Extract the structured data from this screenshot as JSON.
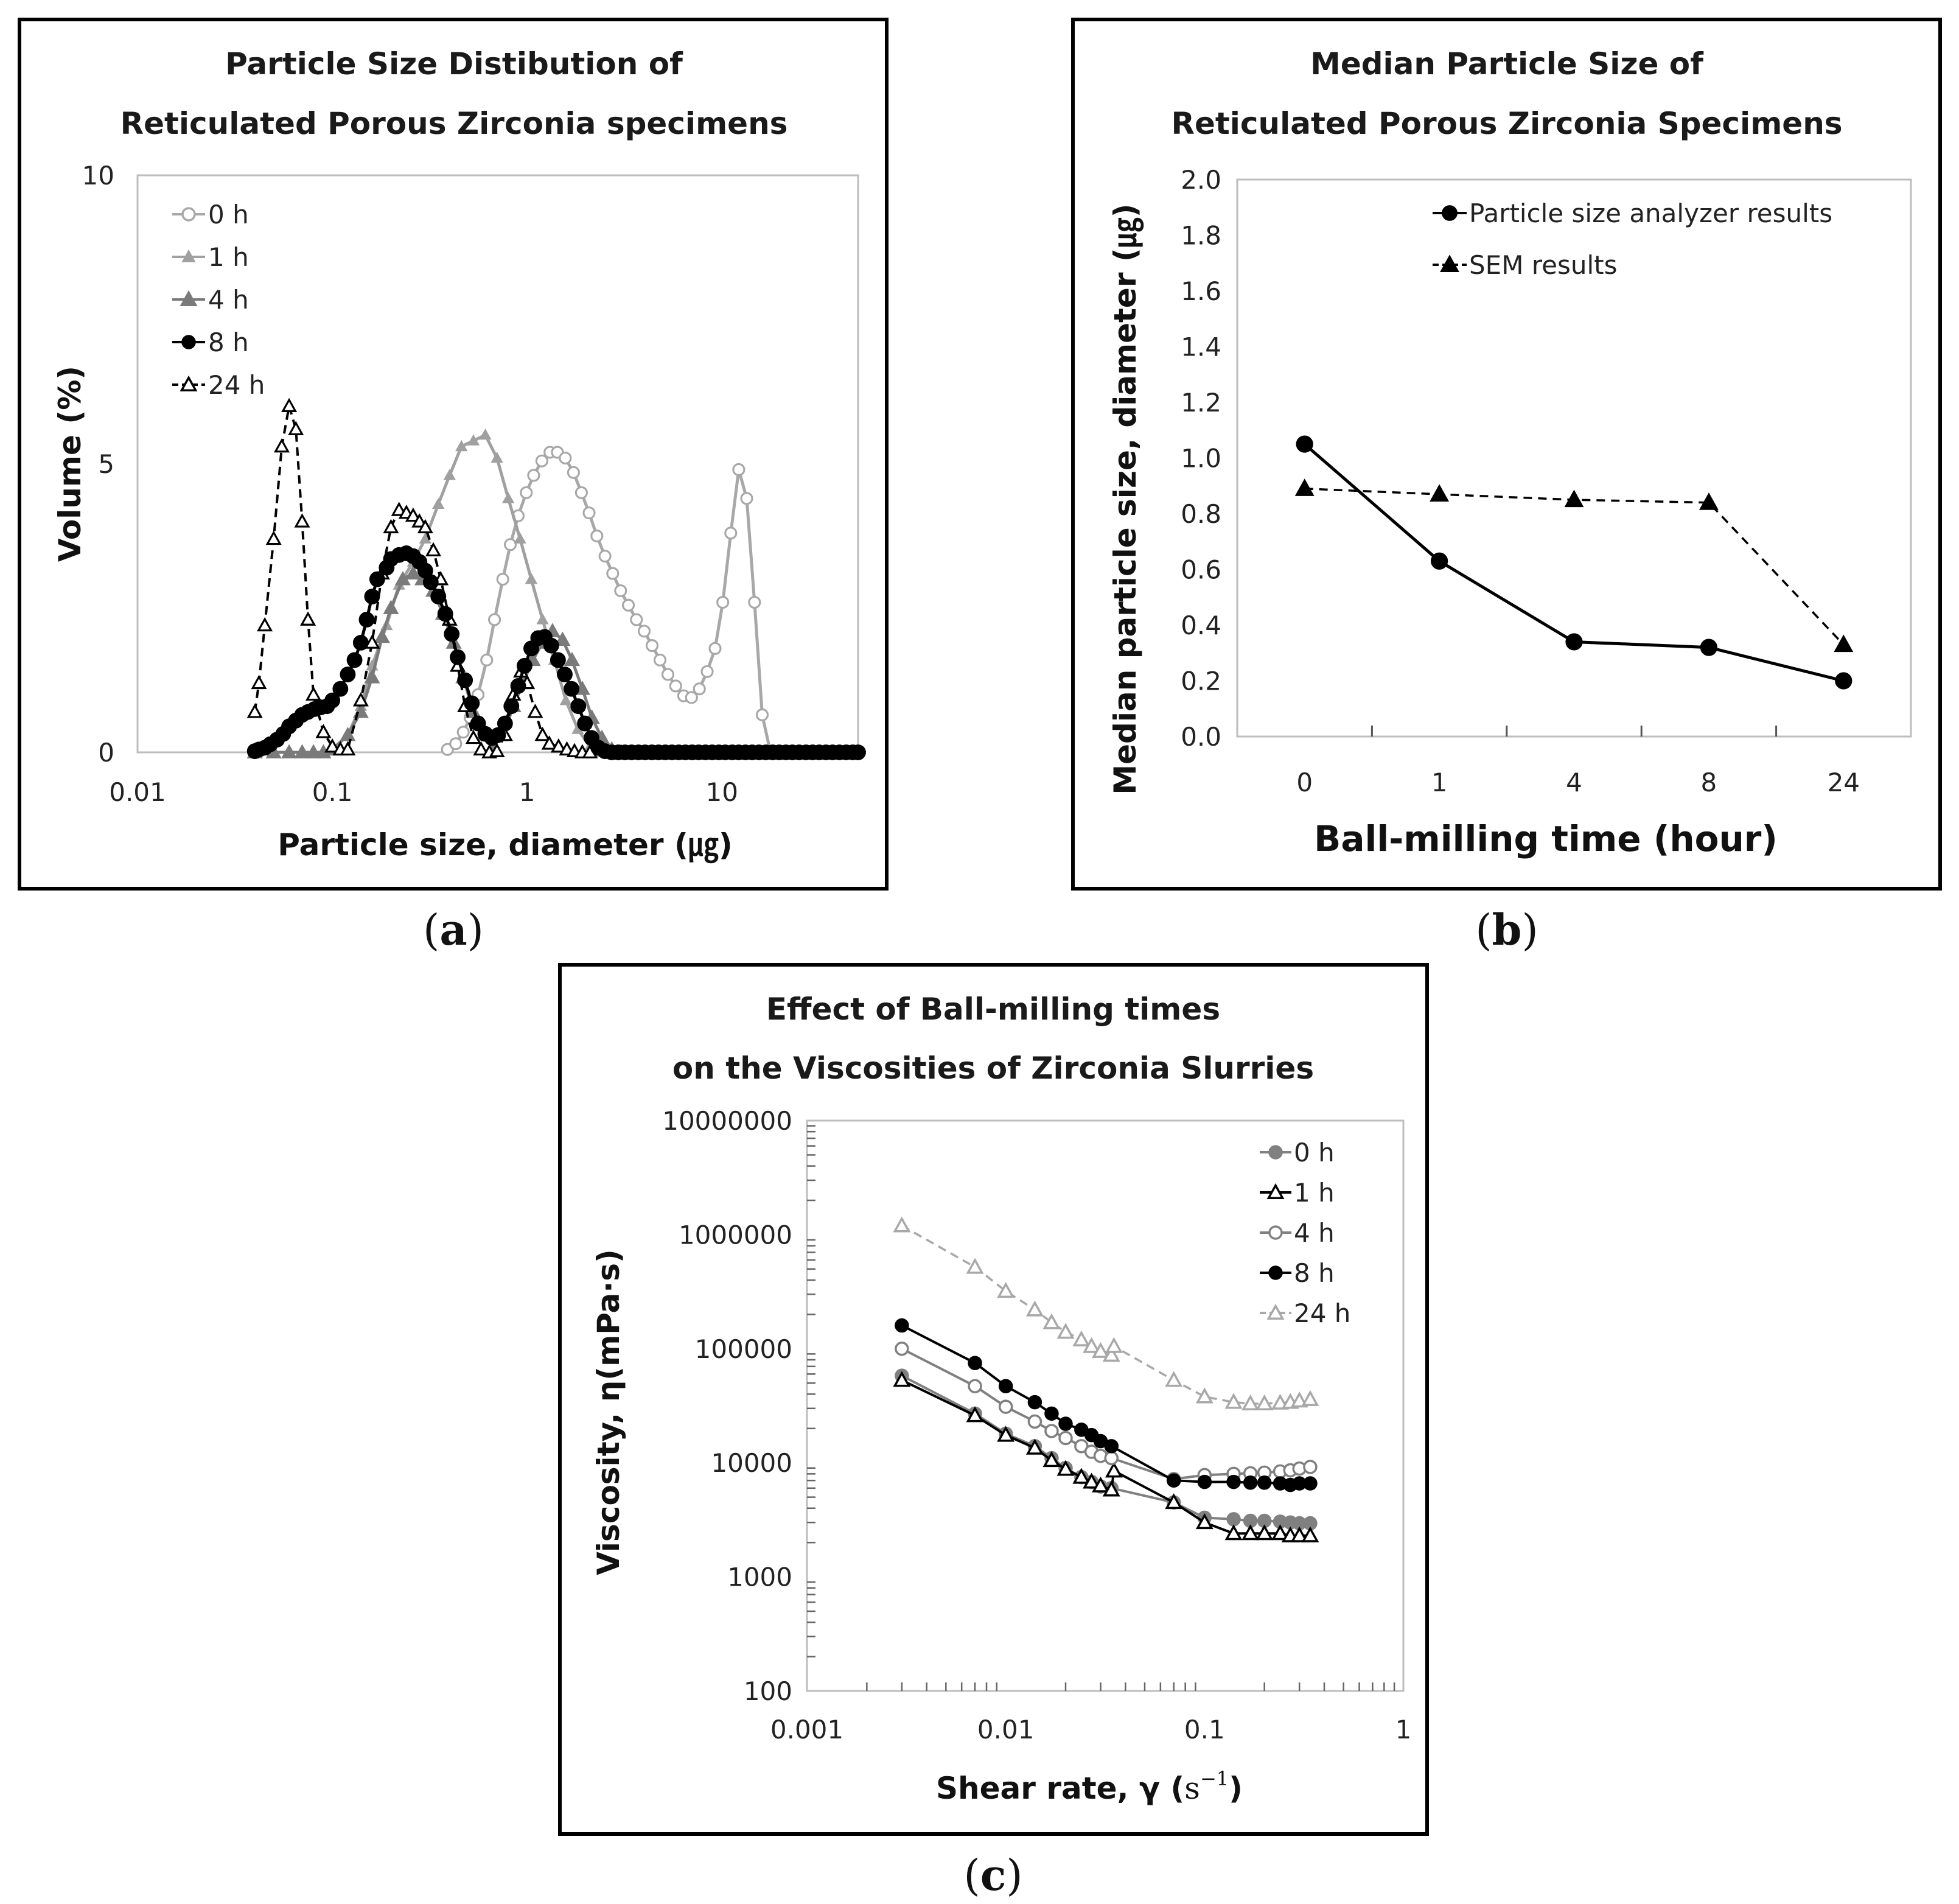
{
  "chart_data": [
    {
      "id": "a",
      "type": "line",
      "caption_letter": "a",
      "caption_open": "(",
      "caption_close": ")",
      "title": [
        "Particle Size Distibution of",
        "Reticulated Porous Zirconia specimens"
      ],
      "xlabel": "Particle size, diameter (㎍)",
      "ylabel": "Volume (%)",
      "x_scale": "log",
      "xlim": [
        0.01,
        50
      ],
      "ylim": [
        0,
        10
      ],
      "x_ticks": [
        {
          "value": 0.01,
          "label": "0.01"
        },
        {
          "value": 0.1,
          "label": "0.1"
        },
        {
          "value": 1,
          "label": "1"
        },
        {
          "value": 10,
          "label": "10"
        }
      ],
      "y_ticks": [
        {
          "value": 0,
          "label": "0"
        },
        {
          "value": 5,
          "label": "5"
        },
        {
          "value": 10,
          "label": "10"
        }
      ],
      "legend_position": "top-left",
      "series": [
        {
          "name": "0 h",
          "legend_label": "0 h",
          "color": "#a8a8a8",
          "marker": "circle-open",
          "dash": "solid",
          "x": [
            0.39,
            0.43,
            0.47,
            0.51,
            0.56,
            0.62,
            0.68,
            0.75,
            0.82,
            0.9,
            0.99,
            1.08,
            1.19,
            1.31,
            1.43,
            1.57,
            1.73,
            1.9,
            2.08,
            2.28,
            2.51,
            2.75,
            3.02,
            3.31,
            3.64,
            3.99,
            4.38,
            4.81,
            5.28,
            5.79,
            6.36,
            6.98,
            7.66,
            8.4,
            9.22,
            10.1,
            11.1,
            12.2,
            13.4,
            14.7,
            16.1,
            17.7,
            19.4,
            21.3,
            23.4,
            25.7,
            28.2,
            30.9,
            33.9,
            37.3,
            40.9,
            44.9,
            49.3
          ],
          "y": [
            0.05,
            0.15,
            0.35,
            0.6,
            1.0,
            1.6,
            2.3,
            3.0,
            3.6,
            4.1,
            4.5,
            4.8,
            5.05,
            5.2,
            5.2,
            5.1,
            4.85,
            4.5,
            4.15,
            3.75,
            3.4,
            3.1,
            2.8,
            2.55,
            2.3,
            2.1,
            1.85,
            1.6,
            1.35,
            1.15,
            0.98,
            0.95,
            1.1,
            1.4,
            1.8,
            2.6,
            3.8,
            4.9,
            4.4,
            2.6,
            0.65,
            0.02,
            0,
            0,
            0,
            0,
            0,
            0,
            0,
            0,
            0,
            0,
            0
          ]
        },
        {
          "name": "1 h",
          "legend_label": "1 h",
          "color": "#a0a0a0",
          "marker": "triangle-filled-small",
          "dash": "solid",
          "x": [
            0.04,
            0.05,
            0.06,
            0.07,
            0.08,
            0.09,
            0.1,
            0.12,
            0.14,
            0.16,
            0.19,
            0.22,
            0.26,
            0.3,
            0.35,
            0.4,
            0.46,
            0.53,
            0.61,
            0.7,
            0.8,
            0.92,
            1.05,
            1.2,
            1.38,
            1.58,
            1.82,
            2.1,
            2.4,
            2.75,
            3.15,
            3.6
          ],
          "y": [
            0,
            0,
            0,
            0,
            0,
            0,
            0.05,
            0.3,
            0.8,
            1.5,
            2.2,
            2.9,
            3.3,
            3.7,
            4.3,
            4.8,
            5.3,
            5.4,
            5.5,
            5.1,
            4.4,
            3.7,
            3.0,
            2.3,
            1.6,
            0.9,
            0.4,
            0.1,
            0,
            0,
            0,
            0
          ]
        },
        {
          "name": "4 h",
          "legend_label": "4 h",
          "color": "#7a7a7a",
          "marker": "triangle-filled",
          "dash": "solid",
          "x": [
            0.04,
            0.05,
            0.06,
            0.07,
            0.08,
            0.09,
            0.1,
            0.12,
            0.14,
            0.16,
            0.18,
            0.2,
            0.23,
            0.26,
            0.29,
            0.33,
            0.37,
            0.42,
            0.47,
            0.53,
            0.6,
            0.67,
            0.75,
            0.85,
            0.95,
            1.07,
            1.2,
            1.35,
            1.52,
            1.7,
            1.92,
            2.15,
            2.42,
            2.72,
            3.05
          ],
          "y": [
            0,
            0,
            0,
            0,
            0,
            0,
            0.05,
            0.3,
            0.7,
            1.3,
            2.0,
            2.5,
            3.0,
            3.1,
            3.0,
            2.8,
            2.4,
            1.9,
            1.3,
            0.7,
            0.3,
            0.1,
            0.3,
            0.8,
            1.2,
            1.6,
            1.9,
            2.1,
            1.95,
            1.6,
            1.1,
            0.6,
            0.25,
            0.05,
            0
          ]
        },
        {
          "name": "8 h",
          "legend_label": "8 h",
          "color": "#000000",
          "marker": "circle-filled",
          "dash": "solid",
          "x": [
            0.04,
            0.042,
            0.045,
            0.048,
            0.052,
            0.056,
            0.06,
            0.065,
            0.07,
            0.075,
            0.081,
            0.087,
            0.094,
            0.1,
            0.11,
            0.12,
            0.13,
            0.14,
            0.15,
            0.16,
            0.17,
            0.19,
            0.2,
            0.22,
            0.24,
            0.26,
            0.28,
            0.3,
            0.32,
            0.35,
            0.38,
            0.41,
            0.44,
            0.48,
            0.52,
            0.56,
            0.61,
            0.66,
            0.71,
            0.77,
            0.83,
            0.9,
            0.97,
            1.05,
            1.14,
            1.23,
            1.33,
            1.44,
            1.56,
            1.69,
            1.83,
            1.98,
            2.14,
            2.32,
            2.51,
            2.72,
            2.94,
            3.18,
            3.44,
            3.73,
            4.03,
            4.37,
            4.73,
            5.12,
            5.54,
            6.0,
            6.49,
            7.03,
            7.6,
            8.23,
            8.91,
            9.64,
            10.4,
            11.3,
            12.2,
            13.2,
            14.3,
            15.5,
            16.8,
            18.2,
            19.7,
            21.3,
            23.0,
            24.9,
            27.0,
            29.2,
            31.6,
            34.2,
            37.0,
            40.1,
            43.4,
            47.0,
            50.0
          ],
          "y": [
            0.02,
            0.05,
            0.08,
            0.14,
            0.22,
            0.32,
            0.45,
            0.55,
            0.65,
            0.7,
            0.75,
            0.78,
            0.8,
            0.9,
            1.1,
            1.35,
            1.6,
            1.9,
            2.3,
            2.7,
            3.0,
            3.2,
            3.35,
            3.42,
            3.45,
            3.4,
            3.3,
            3.15,
            2.95,
            2.7,
            2.4,
            2.05,
            1.65,
            1.25,
            0.85,
            0.5,
            0.32,
            0.25,
            0.3,
            0.5,
            0.8,
            1.15,
            1.5,
            1.8,
            1.98,
            2.0,
            1.85,
            1.6,
            1.35,
            1.1,
            0.8,
            0.5,
            0.25,
            0.08,
            0.02,
            0,
            0,
            0,
            0,
            0,
            0,
            0,
            0,
            0,
            0,
            0,
            0,
            0,
            0,
            0,
            0,
            0,
            0,
            0,
            0,
            0,
            0,
            0,
            0,
            0,
            0,
            0,
            0,
            0,
            0,
            0,
            0,
            0,
            0,
            0,
            0,
            0,
            0
          ]
        },
        {
          "name": "24 h",
          "legend_label": "24 h",
          "color": "#000000",
          "marker": "triangle-open",
          "dash": "dashed",
          "x": [
            0.04,
            0.042,
            0.045,
            0.05,
            0.055,
            0.06,
            0.065,
            0.07,
            0.075,
            0.08,
            0.09,
            0.1,
            0.11,
            0.12,
            0.14,
            0.16,
            0.18,
            0.2,
            0.22,
            0.24,
            0.26,
            0.28,
            0.3,
            0.33,
            0.36,
            0.4,
            0.44,
            0.48,
            0.53,
            0.58,
            0.64,
            0.7,
            0.77,
            0.85,
            0.93,
            1.0,
            1.1,
            1.2,
            1.3,
            1.45,
            1.6,
            1.75,
            1.92,
            2.1
          ],
          "y": [
            0.7,
            1.2,
            2.2,
            3.7,
            5.3,
            6.0,
            5.6,
            4.0,
            2.3,
            1.0,
            0.35,
            0.1,
            0.05,
            0.05,
            0.9,
            1.9,
            3.1,
            3.9,
            4.2,
            4.15,
            4.1,
            4.0,
            3.9,
            3.5,
            3.0,
            2.3,
            1.5,
            0.8,
            0.25,
            0.05,
            0.0,
            0.02,
            0.3,
            1.0,
            1.4,
            1.2,
            0.7,
            0.3,
            0.15,
            0.1,
            0.05,
            0.02,
            0,
            0
          ]
        }
      ]
    },
    {
      "id": "b",
      "type": "line",
      "caption_letter": "b",
      "caption_open": "(",
      "caption_close": ")",
      "title": [
        "Median Particle Size of",
        "Reticulated Porous Zirconia Specimens"
      ],
      "xlabel": "Ball-milling time (hour)",
      "ylabel": "Median particle size, diameter (㎍)",
      "categories": [
        "0",
        "1",
        "4",
        "8",
        "24"
      ],
      "ylim": [
        0,
        2
      ],
      "y_ticks": [
        {
          "value": 0.0,
          "label": "0.0"
        },
        {
          "value": 0.2,
          "label": "0.2"
        },
        {
          "value": 0.4,
          "label": "0.4"
        },
        {
          "value": 0.6,
          "label": "0.6"
        },
        {
          "value": 0.8,
          "label": "0.8"
        },
        {
          "value": 1.0,
          "label": "1.0"
        },
        {
          "value": 1.2,
          "label": "1.2"
        },
        {
          "value": 1.4,
          "label": "1.4"
        },
        {
          "value": 1.6,
          "label": "1.6"
        },
        {
          "value": 1.8,
          "label": "1.8"
        },
        {
          "value": 2.0,
          "label": "2.0"
        }
      ],
      "legend_position": "top-right",
      "series": [
        {
          "name": "Particle size analyzer results",
          "legend_label": "Particle size analyzer results",
          "color": "#000000",
          "marker": "circle-filled",
          "dash": "solid",
          "values": [
            1.05,
            0.63,
            0.34,
            0.32,
            0.2
          ]
        },
        {
          "name": "SEM results",
          "legend_label": "SEM results",
          "color": "#000000",
          "marker": "triangle-filled",
          "dash": "dashed",
          "values": [
            0.89,
            0.87,
            0.85,
            0.84,
            0.33
          ]
        }
      ]
    },
    {
      "id": "c",
      "type": "line",
      "caption_letter": "c",
      "caption_open": "(",
      "caption_close": ")",
      "title": [
        "Effect of Ball-milling times",
        "on the Viscosities of Zirconia Slurries"
      ],
      "xlabel_prefix": "Shear rate, γ (",
      "xlabel_base": "s",
      "xlabel_sup": "−1",
      "xlabel_suffix": ")",
      "ylabel": "Viscosity, η(mPa·s)",
      "x_scale": "log",
      "y_scale": "log",
      "xlim": [
        0.001,
        1
      ],
      "ylim": [
        100,
        10000000
      ],
      "x_ticks": [
        {
          "value": 0.001,
          "label": "0.001"
        },
        {
          "value": 0.01,
          "label": "0.01"
        },
        {
          "value": 0.1,
          "label": "0.1"
        },
        {
          "value": 1,
          "label": "1"
        }
      ],
      "y_ticks": [
        {
          "value": 100,
          "label": "100"
        },
        {
          "value": 1000,
          "label": "1000"
        },
        {
          "value": 10000,
          "label": "10000"
        },
        {
          "value": 100000,
          "label": "100000"
        },
        {
          "value": 1000000,
          "label": "1000000"
        },
        {
          "value": 10000000,
          "label": "10000000"
        }
      ],
      "legend_position": "top-right",
      "series": [
        {
          "name": "0 h",
          "legend_label": "0 h",
          "color": "#808080",
          "marker": "circle-filled",
          "dash": "solid",
          "x": [
            0.003,
            0.007,
            0.01,
            0.014,
            0.017,
            0.02,
            0.024,
            0.027,
            0.03,
            0.034,
            0.07,
            0.1,
            0.14,
            0.17,
            0.2,
            0.24,
            0.27,
            0.3,
            0.34
          ],
          "y": [
            58000,
            27000,
            18000,
            14000,
            11000,
            9000,
            7500,
            6800,
            6200,
            6000,
            4500,
            3300,
            3200,
            3100,
            3100,
            3050,
            3000,
            2950,
            2950
          ]
        },
        {
          "name": "1 h",
          "legend_label": "1 h",
          "color": "#000000",
          "marker": "triangle-open",
          "dash": "solid",
          "x": [
            0.003,
            0.007,
            0.01,
            0.014,
            0.017,
            0.02,
            0.024,
            0.027,
            0.03,
            0.034,
            0.035,
            0.07,
            0.1,
            0.14,
            0.17,
            0.2,
            0.24,
            0.27,
            0.3,
            0.34
          ],
          "y": [
            53000,
            26000,
            17500,
            13500,
            10500,
            8800,
            7500,
            6800,
            6300,
            5800,
            8500,
            4500,
            3000,
            2400,
            2400,
            2400,
            2400,
            2300,
            2300,
            2300
          ]
        },
        {
          "name": "4 h",
          "legend_label": "4 h",
          "color": "#808080",
          "marker": "circle-open",
          "dash": "solid",
          "x": [
            0.003,
            0.007,
            0.01,
            0.014,
            0.017,
            0.02,
            0.024,
            0.027,
            0.03,
            0.034,
            0.07,
            0.1,
            0.14,
            0.17,
            0.2,
            0.24,
            0.27,
            0.3,
            0.34
          ],
          "y": [
            100000,
            47000,
            31000,
            23000,
            19000,
            16500,
            14000,
            12500,
            11500,
            11000,
            7200,
            7800,
            8000,
            8100,
            8200,
            8400,
            8600,
            8900,
            9200
          ]
        },
        {
          "name": "8 h",
          "legend_label": "8 h",
          "color": "#000000",
          "marker": "circle-filled",
          "dash": "solid",
          "x": [
            0.003,
            0.007,
            0.01,
            0.014,
            0.017,
            0.02,
            0.024,
            0.027,
            0.03,
            0.034,
            0.07,
            0.1,
            0.14,
            0.17,
            0.2,
            0.24,
            0.27,
            0.3,
            0.34
          ],
          "y": [
            160000,
            75000,
            47000,
            34000,
            27000,
            22000,
            19500,
            17500,
            15500,
            14000,
            7000,
            6800,
            6800,
            6700,
            6700,
            6600,
            6400,
            6600,
            6600
          ]
        },
        {
          "name": "24 h",
          "legend_label": "24 h",
          "color": "#a8a8a8",
          "marker": "triangle-open",
          "dash": "dashed",
          "x": [
            0.003,
            0.007,
            0.01,
            0.014,
            0.017,
            0.02,
            0.024,
            0.027,
            0.03,
            0.034,
            0.035,
            0.07,
            0.1,
            0.14,
            0.17,
            0.2,
            0.24,
            0.27,
            0.3,
            0.34
          ],
          "y": [
            1200000,
            520000,
            320000,
            220000,
            170000,
            140000,
            120000,
            105000,
            95000,
            88000,
            105000,
            53000,
            38000,
            34000,
            33000,
            33000,
            33500,
            34000,
            35000,
            36000
          ]
        }
      ]
    }
  ]
}
